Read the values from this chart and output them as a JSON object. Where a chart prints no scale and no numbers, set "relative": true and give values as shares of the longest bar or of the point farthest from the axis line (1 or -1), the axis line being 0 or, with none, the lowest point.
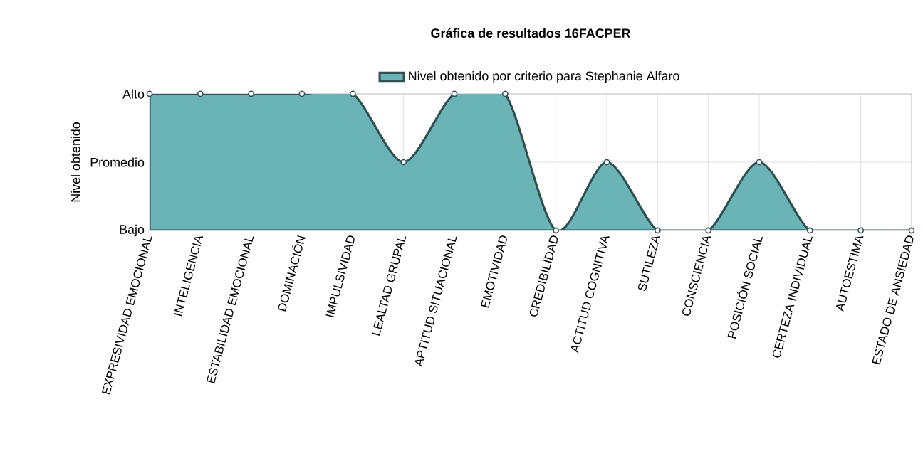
{
  "chart_data": {
    "type": "area",
    "title": "Gráfica de resultados 16FACPER",
    "ylabel": "Nivel obtenido",
    "categories": [
      "EXPRESIVIDAD EMOCIONAL",
      "INTELIGENCIA",
      "ESTABILIDAD EMOCIONAL",
      "DOMINACIÓN",
      "IMPULSIVIDAD",
      "LEALTAD GRUPAL",
      "APTITUD SITUACIONAL",
      "EMOTIVIDAD",
      "CREDIBILIDAD",
      "ACTITUD COGNITIVA",
      "SUTILEZA",
      "CONSCIENCIA",
      "POSICIÓN SOCIAL",
      "CERTEZA INDIVIDUAL",
      "AUTOESTIMA",
      "ESTADO DE ANSIEDAD"
    ],
    "series": [
      {
        "name": "Nivel obtenido por criterio para Stephanie Alfaro",
        "color": "#6ab4b8",
        "values": [
          1,
          1,
          1,
          1,
          1,
          0.5,
          1,
          1,
          0,
          0.5,
          0,
          0,
          0.5,
          0,
          0,
          0
        ]
      }
    ],
    "relative": true,
    "annotations": [
      "Bajo",
      "Promedio",
      "Alto"
    ],
    "grid": true,
    "legend": "top",
    "marker": "circle"
  }
}
